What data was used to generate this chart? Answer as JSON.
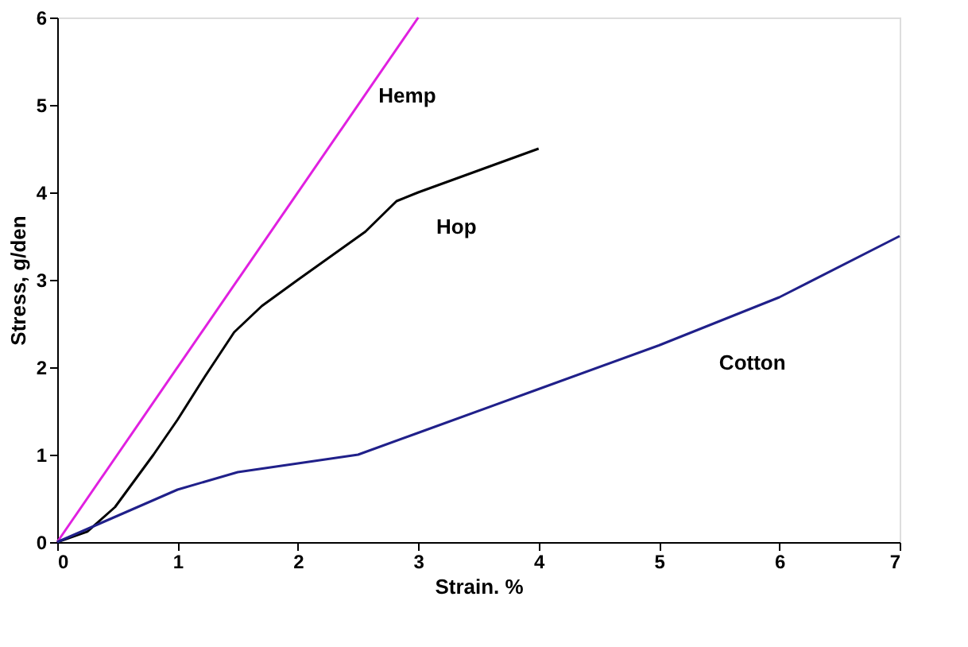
{
  "chart_data": {
    "type": "line",
    "xlabel": "Strain. %",
    "ylabel": "Stress, g/den",
    "xlim": [
      0,
      7
    ],
    "ylim": [
      0,
      6
    ],
    "xticks": [
      0,
      1,
      2,
      3,
      4,
      5,
      6,
      7
    ],
    "yticks": [
      0,
      1,
      2,
      3,
      4,
      5,
      6
    ],
    "grid": false,
    "marker": "none",
    "line_style": "solid",
    "series": [
      {
        "name": "Hemp",
        "color": "#e020e0",
        "x": [
          0,
          3
        ],
        "values": [
          0,
          6
        ]
      },
      {
        "name": "Hop",
        "color": "#000000",
        "x": [
          0,
          0.25,
          0.48,
          0.8,
          1.0,
          1.23,
          1.47,
          1.7,
          2.0,
          2.56,
          2.82,
          3.0,
          3.5,
          4.0
        ],
        "values": [
          0,
          0.12,
          0.4,
          1.0,
          1.4,
          1.9,
          2.4,
          2.7,
          3.0,
          3.55,
          3.9,
          4.0,
          4.25,
          4.5
        ]
      },
      {
        "name": "Cotton",
        "color": "#20208a",
        "x": [
          0,
          0.5,
          1,
          1.5,
          2,
          2.5,
          3,
          4,
          5,
          6,
          7
        ],
        "values": [
          0,
          0.3,
          0.6,
          0.8,
          0.9,
          1.0,
          1.25,
          1.75,
          2.25,
          2.8,
          3.5
        ]
      }
    ]
  }
}
